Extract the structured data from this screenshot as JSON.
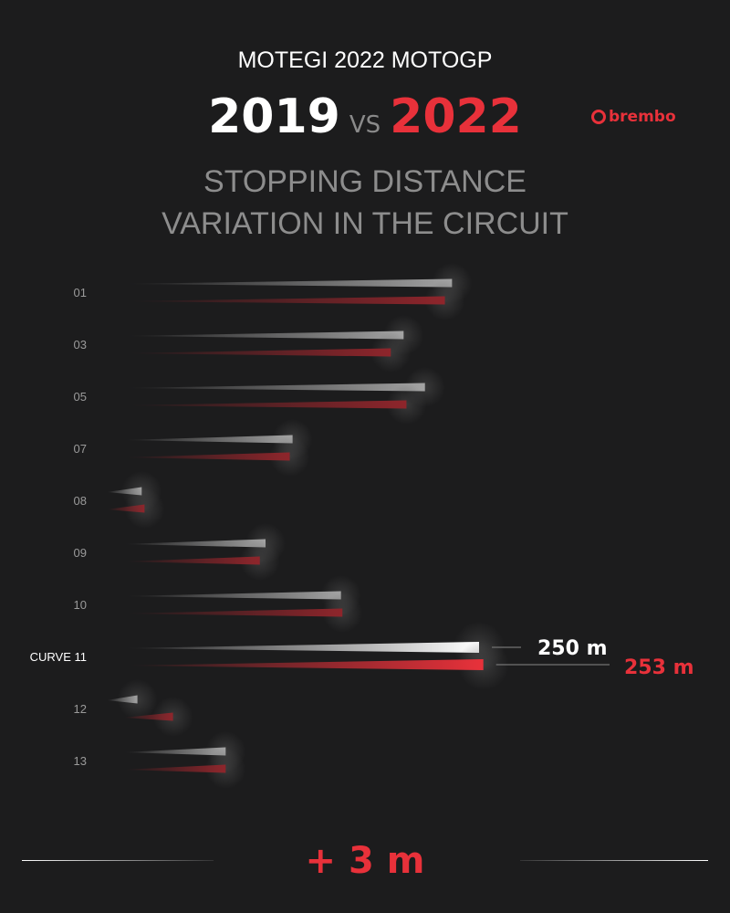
{
  "header": {
    "subtitle": "MOTEGI 2022 MOTOGP",
    "year_a": "2019",
    "vs": "VS",
    "year_b": "2022",
    "logo": "brembo",
    "title_line1": "STOPPING DISTANCE",
    "title_line2": "VARIATION IN THE CIRCUIT"
  },
  "colors": {
    "year_a": "#ffffff",
    "year_b": "#e8313a",
    "background": "#1c1c1d"
  },
  "chart_data": {
    "type": "bar",
    "orientation": "horizontal",
    "title": "STOPPING DISTANCE VARIATION IN THE CIRCUIT",
    "unit": "m",
    "categories": [
      "01",
      "03",
      "05",
      "07",
      "08",
      "09",
      "10",
      "CURVE 11",
      "12",
      "13"
    ],
    "highlight": "CURVE 11",
    "series": [
      {
        "name": "2019",
        "values": [
          231,
          197,
          212,
          119,
          13,
          100,
          153,
          250,
          10,
          72
        ]
      },
      {
        "name": "2022",
        "values": [
          226,
          188,
          199,
          117,
          15,
          96,
          154,
          253,
          35,
          72
        ]
      }
    ],
    "annotations": {
      "2019": "250 m",
      "2022": "253 m"
    }
  },
  "footer": {
    "delta": "+ 3 m"
  }
}
